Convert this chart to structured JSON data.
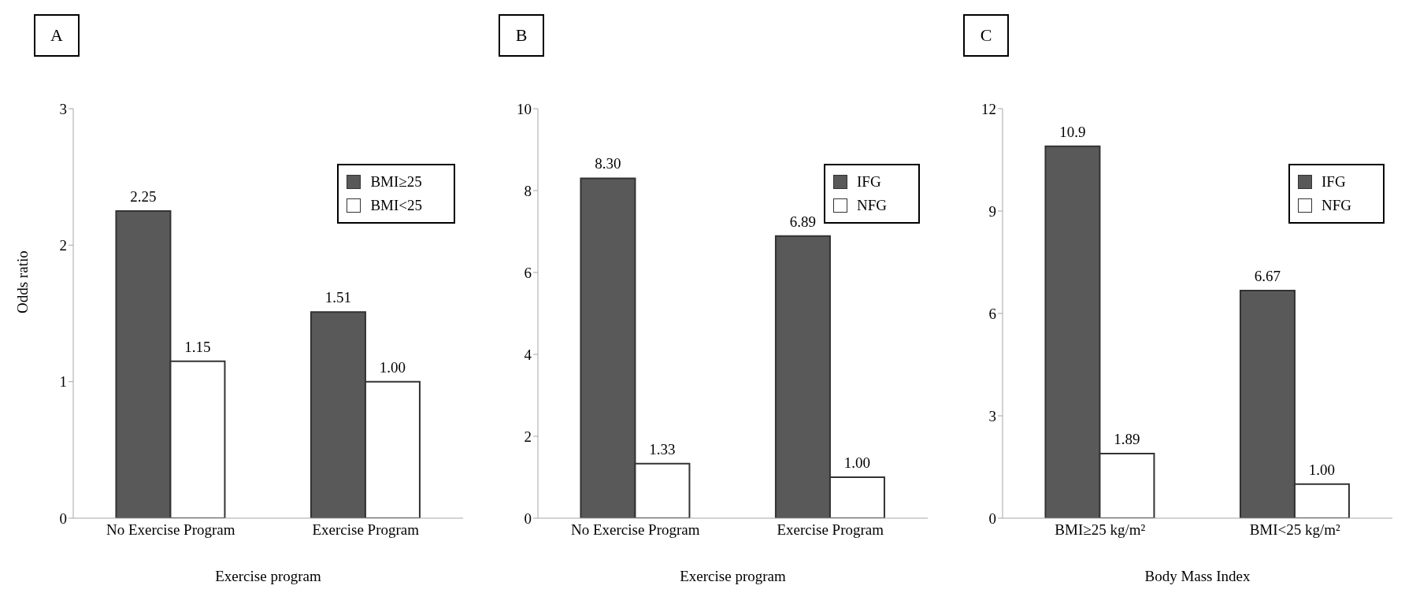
{
  "chart_data": [
    {
      "type": "bar",
      "title": "A",
      "xlabel": "Exercise program",
      "ylabel": "Odds ratio",
      "categories": [
        "No Exercise Program",
        "Exercise Program"
      ],
      "series": [
        {
          "name": "BMI≥25",
          "color": "#595959",
          "values": [
            2.25,
            1.51
          ],
          "value_labels": [
            "2.25",
            "1.51"
          ]
        },
        {
          "name": "BMI<25",
          "color": "#ffffff",
          "values": [
            1.15,
            1.0
          ],
          "value_labels": [
            "1.15",
            "1.00"
          ]
        }
      ],
      "ylim": [
        0,
        3
      ],
      "yticks": [
        0,
        1,
        2,
        3
      ],
      "legend": "top right",
      "grid": false
    },
    {
      "type": "bar",
      "title": "B",
      "xlabel": "Exercise program",
      "categories": [
        "No Exercise Program",
        "Exercise Program"
      ],
      "series": [
        {
          "name": "IFG",
          "color": "#595959",
          "values": [
            8.3,
            6.89
          ],
          "value_labels": [
            "8.30",
            "6.89"
          ]
        },
        {
          "name": "NFG",
          "color": "#ffffff",
          "values": [
            1.33,
            1.0
          ],
          "value_labels": [
            "1.33",
            "1.00"
          ]
        }
      ],
      "ylim": [
        0,
        10
      ],
      "yticks": [
        0,
        2,
        4,
        6,
        8,
        10
      ],
      "legend": "top right",
      "grid": false
    },
    {
      "type": "bar",
      "title": "C",
      "xlabel": "Body Mass Index",
      "categories": [
        "BMI≥25 kg/m²",
        "BMI<25 kg/m²"
      ],
      "series": [
        {
          "name": "IFG",
          "color": "#595959",
          "values": [
            10.9,
            6.67
          ],
          "value_labels": [
            "10.9",
            "6.67"
          ]
        },
        {
          "name": "NFG",
          "color": "#ffffff",
          "values": [
            1.89,
            1.0
          ],
          "value_labels": [
            "1.89",
            "1.00"
          ]
        }
      ],
      "ylim": [
        0,
        12
      ],
      "yticks": [
        0,
        3,
        6,
        9,
        12
      ],
      "legend": "top right",
      "grid": false
    }
  ]
}
